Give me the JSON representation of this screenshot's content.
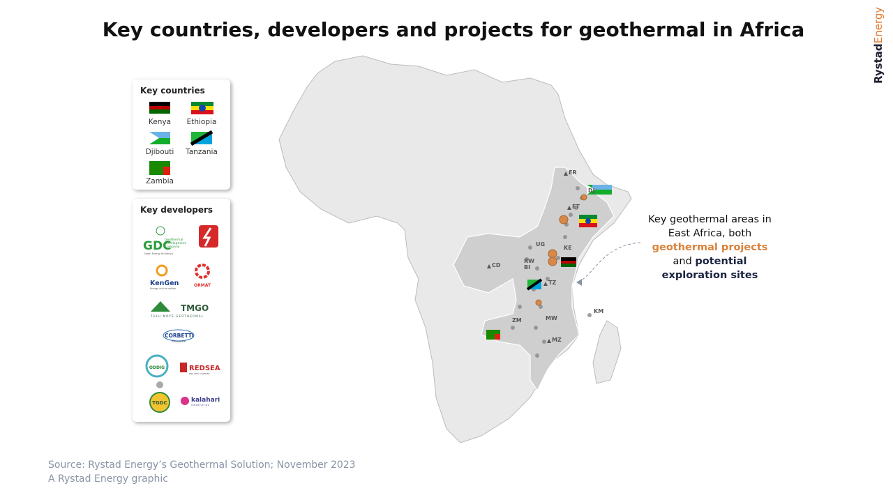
{
  "header": {
    "title": "Key countries, developers and projects for geothermal in Africa",
    "brand_1": "Rystad",
    "brand_2": "Energy"
  },
  "countries_panel": {
    "heading": "Key countries",
    "items": [
      "Kenya",
      "Ethiopia",
      "Djibouti",
      "Tanzania",
      "Zambia"
    ]
  },
  "developers_panel": {
    "heading": "Key developers",
    "gdc": {
      "mark": "GDC",
      "name_1": "Geothermal",
      "name_2": "Development",
      "name_3": "Company",
      "tagline": "Green Energy for Kenya"
    },
    "kengen": {
      "mark": "KenGen",
      "tagline": "Energy for the nation"
    },
    "ormat": {
      "mark": "ORMAT"
    },
    "tmgo": {
      "mark": "TMGO",
      "tagline": "TULU MOYE GEOTHERMAL"
    },
    "corbetti": {
      "mark": "CORBETTI",
      "tagline": "Geothermal"
    },
    "redsea": {
      "mark": "REDSEA",
      "tagline": "DRILLING COMPANY"
    },
    "oddig": {
      "mark": "ODDIG"
    },
    "tgdc": {
      "mark": "TGDC"
    },
    "kalahari": {
      "mark": "kalahari",
      "tagline": "GeoEnergy"
    }
  },
  "map": {
    "labels": [
      "ER",
      "DJ",
      "ET",
      "UG",
      "KE",
      "RW",
      "BI",
      "CD",
      "TZ",
      "ZM",
      "MW",
      "MZ",
      "KM"
    ]
  },
  "annotation": {
    "text_1": "Key geothermal areas in East Africa, both",
    "projects": "geothermal projects",
    "conj": "and",
    "sites": "potential exploration sites"
  },
  "footer": {
    "source": "Source: Rystad Energy’s Geothermal Solution; November 2023",
    "credit": "A Rystad Energy graphic"
  }
}
